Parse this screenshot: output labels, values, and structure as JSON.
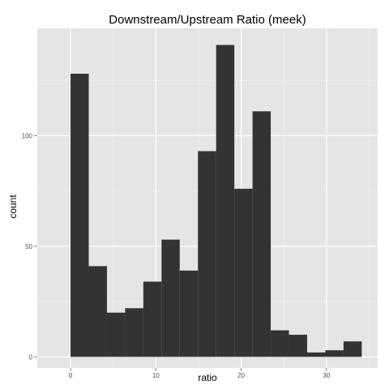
{
  "chart_data": {
    "type": "bar",
    "title": "Downstream/Upstream Ratio (meek)",
    "xlabel": "ratio",
    "ylabel": "count",
    "bin_width": 2.133,
    "bins": [
      {
        "x0": 0.0,
        "x1": 2.133,
        "count": 128
      },
      {
        "x0": 2.133,
        "x1": 4.267,
        "count": 41
      },
      {
        "x0": 4.267,
        "x1": 6.4,
        "count": 20
      },
      {
        "x0": 6.4,
        "x1": 8.533,
        "count": 22
      },
      {
        "x0": 8.533,
        "x1": 10.667,
        "count": 34
      },
      {
        "x0": 10.667,
        "x1": 12.8,
        "count": 53
      },
      {
        "x0": 12.8,
        "x1": 14.933,
        "count": 39
      },
      {
        "x0": 14.933,
        "x1": 17.067,
        "count": 93
      },
      {
        "x0": 17.067,
        "x1": 19.2,
        "count": 141
      },
      {
        "x0": 19.2,
        "x1": 21.333,
        "count": 76
      },
      {
        "x0": 21.333,
        "x1": 23.467,
        "count": 111
      },
      {
        "x0": 23.467,
        "x1": 25.6,
        "count": 12
      },
      {
        "x0": 25.6,
        "x1": 27.733,
        "count": 10
      },
      {
        "x0": 27.733,
        "x1": 29.867,
        "count": 2
      },
      {
        "x0": 29.867,
        "x1": 32.0,
        "count": 3
      },
      {
        "x0": 32.0,
        "x1": 34.133,
        "count": 7
      }
    ],
    "xlim": [
      -3.9,
      36.0
    ],
    "ylim": [
      -5.0,
      148.5
    ],
    "x_ticks": [
      0,
      10,
      20,
      30
    ],
    "x_tick_labels": [
      "0",
      "10",
      "20",
      "30"
    ],
    "y_ticks": [
      0,
      50,
      100
    ],
    "y_tick_labels": [
      "0",
      "50",
      "100"
    ],
    "grid": true,
    "legend": "none",
    "colors": {
      "panel_background": "#e5e5e5",
      "grid_major": "#ffffff",
      "grid_minor": "#f2f2f2",
      "bar_fill": "#333333",
      "tick_label": "#4d4d4d"
    }
  }
}
